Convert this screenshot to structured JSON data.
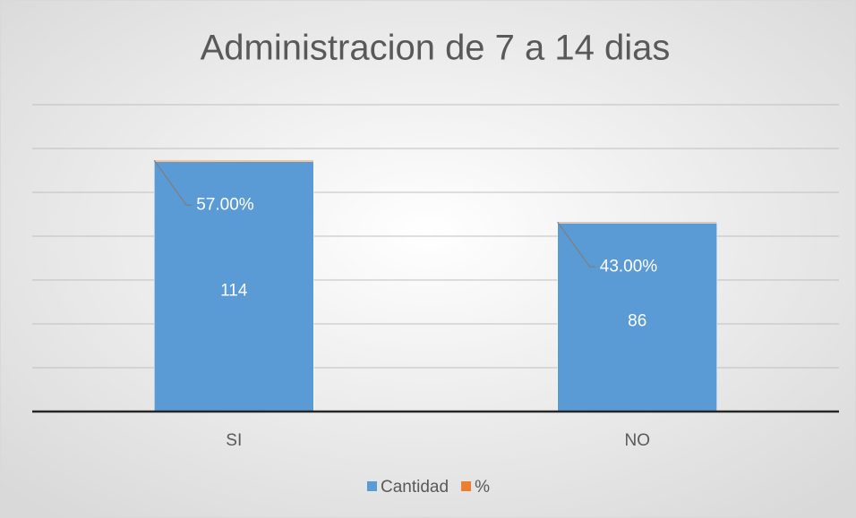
{
  "chart_data": {
    "type": "bar",
    "stacked": true,
    "title": "Administracion de 7 a 14 dias",
    "categories": [
      "SI",
      "NO"
    ],
    "series": [
      {
        "name": "Cantidad",
        "color": "#5b9bd5",
        "values": [
          114,
          86
        ]
      },
      {
        "name": "%",
        "color": "#ed7d31",
        "values": [
          0.57,
          0.43
        ],
        "value_labels": [
          "57.00%",
          "43.00%"
        ]
      }
    ],
    "ylim": [
      0,
      140
    ],
    "yticks": [
      0,
      20,
      40,
      60,
      80,
      100,
      120,
      140
    ],
    "grid": true,
    "legend": "bottom"
  }
}
